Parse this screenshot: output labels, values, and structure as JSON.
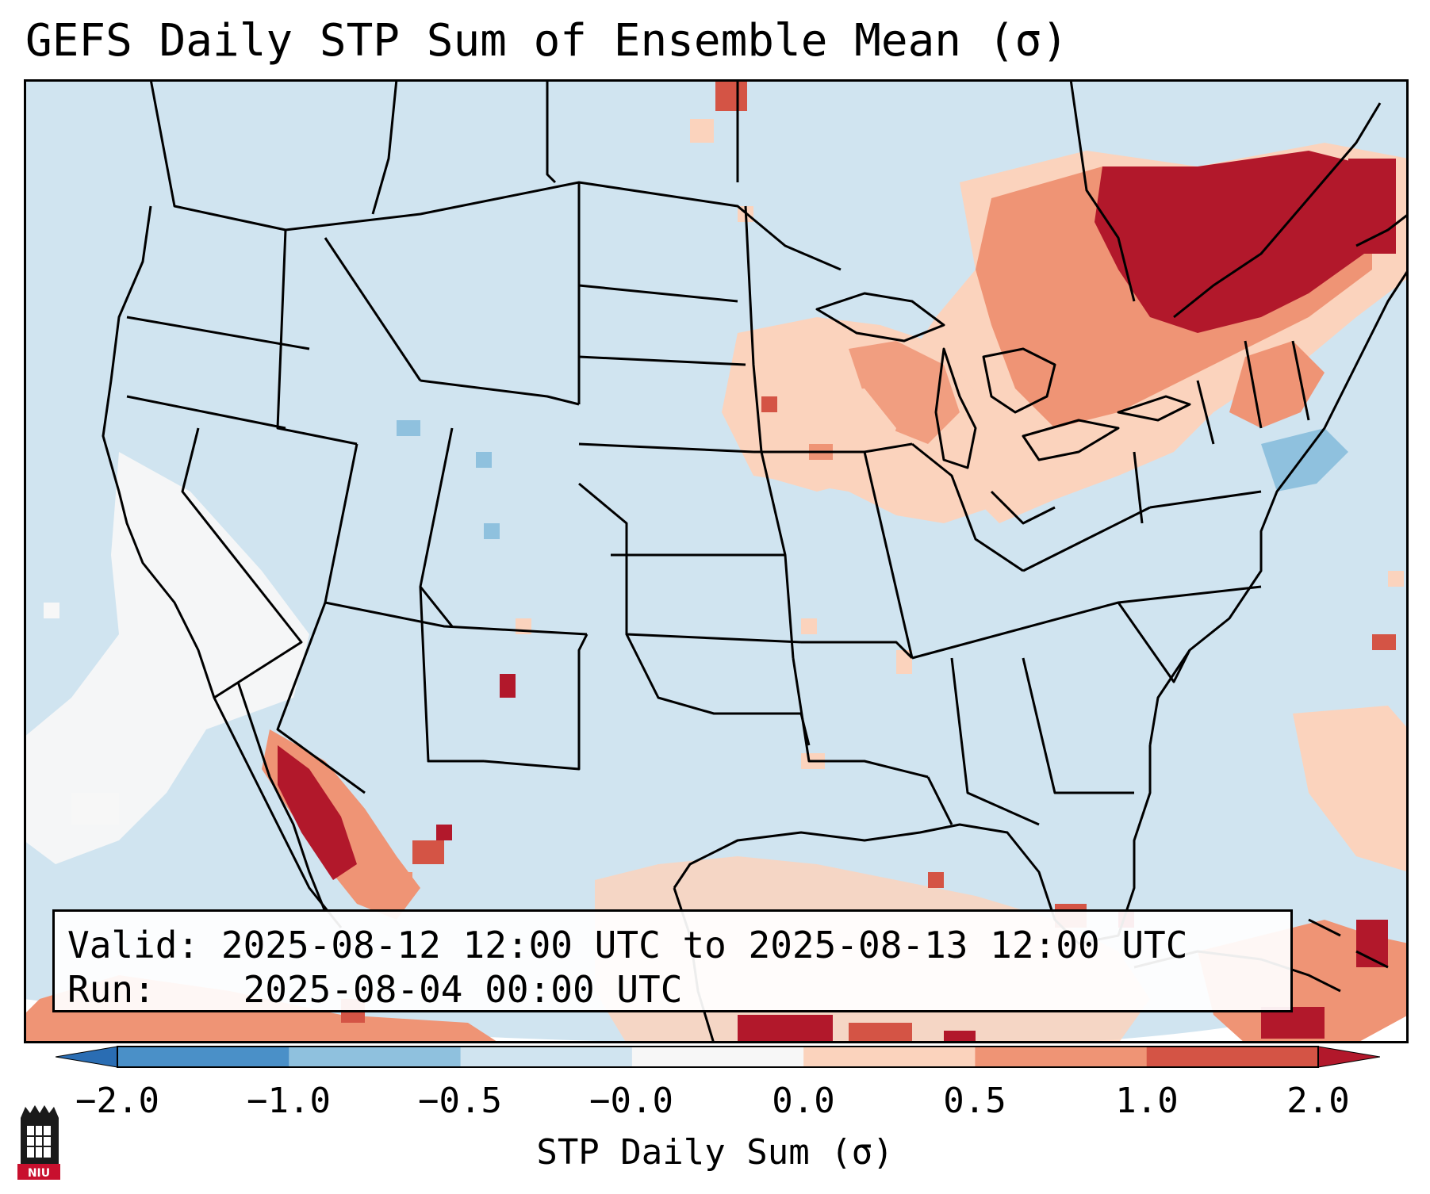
{
  "title": "GEFS Daily STP Sum of Ensemble Mean (σ)",
  "info": {
    "valid_label": "Valid:",
    "valid_value": "2025-08-12 12:00 UTC to 2025-08-13 12:00 UTC",
    "run_label": "Run:",
    "run_value": "2025-08-04 00:00 UTC"
  },
  "colorbar": {
    "label": "STP Daily Sum (σ)",
    "ticks": [
      "−2.0",
      "−1.0",
      "−0.5",
      "−0.0",
      "0.0",
      "0.5",
      "1.0",
      "2.0"
    ],
    "colors": [
      "#4a90c8",
      "#8fc1de",
      "#d0e4f0",
      "#f7f7f7",
      "#fbd3bd",
      "#ef9475",
      "#d45445"
    ],
    "extend_low_color": "#2a6db3",
    "extend_high_color": "#b2182b"
  },
  "map": {
    "background_color": "#d0e4f0",
    "border_color": "#000000",
    "logo_text": "NIU",
    "anomaly_fields": [
      {
        "region": "Quebec / Northeast",
        "sigma_level": "1.0 to 2.0+"
      },
      {
        "region": "Great Lakes / Upper Midwest",
        "sigma_level": "0.0 to 1.0"
      },
      {
        "region": "Baja California / NW Mexico",
        "sigma_level": "1.0 to 2.0+"
      },
      {
        "region": "Gulf of Mexico / Caribbean",
        "sigma_level": "0.0 to 2.0"
      },
      {
        "region": "Eastern Pacific off California",
        "sigma_level": "−0.0 to 0.0"
      },
      {
        "region": "Mid-Atlantic coast",
        "sigma_level": "−1.0 to −0.5"
      }
    ]
  }
}
